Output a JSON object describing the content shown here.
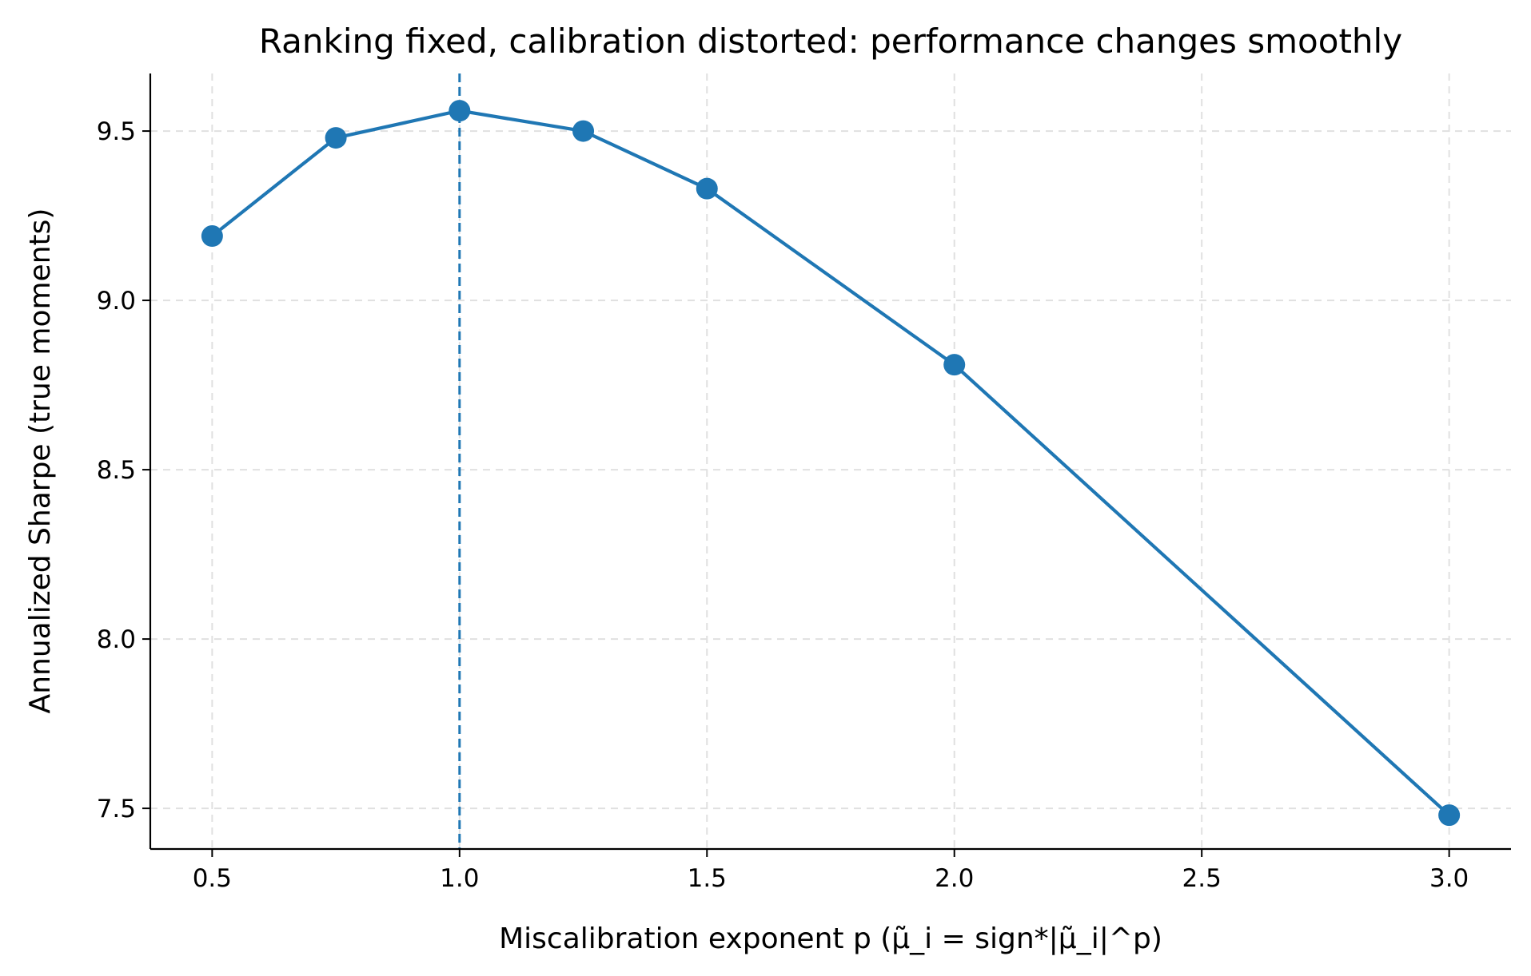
{
  "chart_data": {
    "type": "line",
    "title": "Ranking fixed, calibration distorted: performance changes smoothly",
    "xlabel": "Miscalibration exponent p (μ̃_i = sign*|μ̃_i|^p)",
    "ylabel": "Annualized Sharpe (true moments)",
    "x": [
      0.5,
      0.75,
      1.0,
      1.25,
      1.5,
      2.0,
      3.0
    ],
    "series": [
      {
        "name": "Annualized Sharpe",
        "values": [
          9.19,
          9.48,
          9.56,
          9.5,
          9.33,
          8.81,
          7.48
        ]
      }
    ],
    "reference_line": {
      "x": 1.0,
      "style": "dashed"
    },
    "xlim": [
      0.375,
      3.125
    ],
    "ylim": [
      7.38,
      9.67
    ],
    "xticks": [
      0.5,
      1.0,
      1.5,
      2.0,
      2.5,
      3.0
    ],
    "xtick_labels": [
      "0.5",
      "1.0",
      "1.5",
      "2.0",
      "2.5",
      "3.0"
    ],
    "yticks": [
      7.5,
      8.0,
      8.5,
      9.0,
      9.5
    ],
    "ytick_labels": [
      "7.5",
      "8.0",
      "8.5",
      "9.0",
      "9.5"
    ],
    "grid": true,
    "color": "#1f77b4"
  }
}
